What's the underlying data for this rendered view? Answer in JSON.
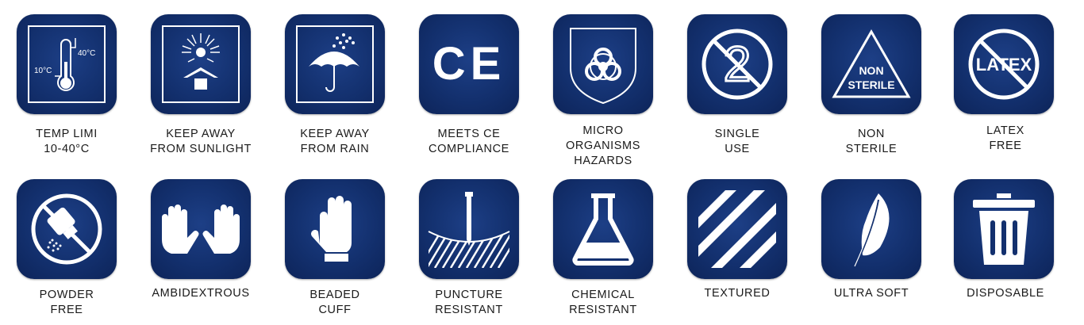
{
  "colors": {
    "tile": "#13306e",
    "icon": "#ffffff",
    "text": "#1a1a1a"
  },
  "badges": [
    {
      "icon": "thermometer-icon",
      "label": "TEMP LIMI\n10-40°C",
      "icon_text": [
        "40°C",
        "10°C"
      ]
    },
    {
      "icon": "sun-icon",
      "label": "KEEP AWAY\nFROM SUNLIGHT"
    },
    {
      "icon": "umbrella-rain-icon",
      "label": "KEEP AWAY\nFROM RAIN"
    },
    {
      "icon": "ce-mark-icon",
      "label": "MEETS CE\nCOMPLIANCE",
      "icon_text": [
        "CE"
      ]
    },
    {
      "icon": "biohazard-icon",
      "label": "MICRO\nORGANISMS\nHAZARDS"
    },
    {
      "icon": "no-reuse-icon",
      "label": "SINGLE\nUSE",
      "icon_text": [
        "2"
      ]
    },
    {
      "icon": "non-sterile-icon",
      "label": "NON\nSTERILE",
      "icon_text": [
        "NON",
        "STERILE"
      ]
    },
    {
      "icon": "no-latex-icon",
      "label": "LATEX\nFREE",
      "icon_text": [
        "LATEX"
      ]
    },
    {
      "icon": "no-powder-icon",
      "label": "POWDER\nFREE"
    },
    {
      "icon": "two-hands-icon",
      "label": "AMBIDEXTROUS"
    },
    {
      "icon": "glove-icon",
      "label": "BEADED\nCUFF"
    },
    {
      "icon": "puncture-icon",
      "label": "PUNCTURE\nRESISTANT"
    },
    {
      "icon": "flask-icon",
      "label": "CHEMICAL\nRESISTANT"
    },
    {
      "icon": "stripes-icon",
      "label": "TEXTURED"
    },
    {
      "icon": "feather-icon",
      "label": "ULTRA SOFT"
    },
    {
      "icon": "trash-bin-icon",
      "label": "DISPOSABLE"
    }
  ]
}
